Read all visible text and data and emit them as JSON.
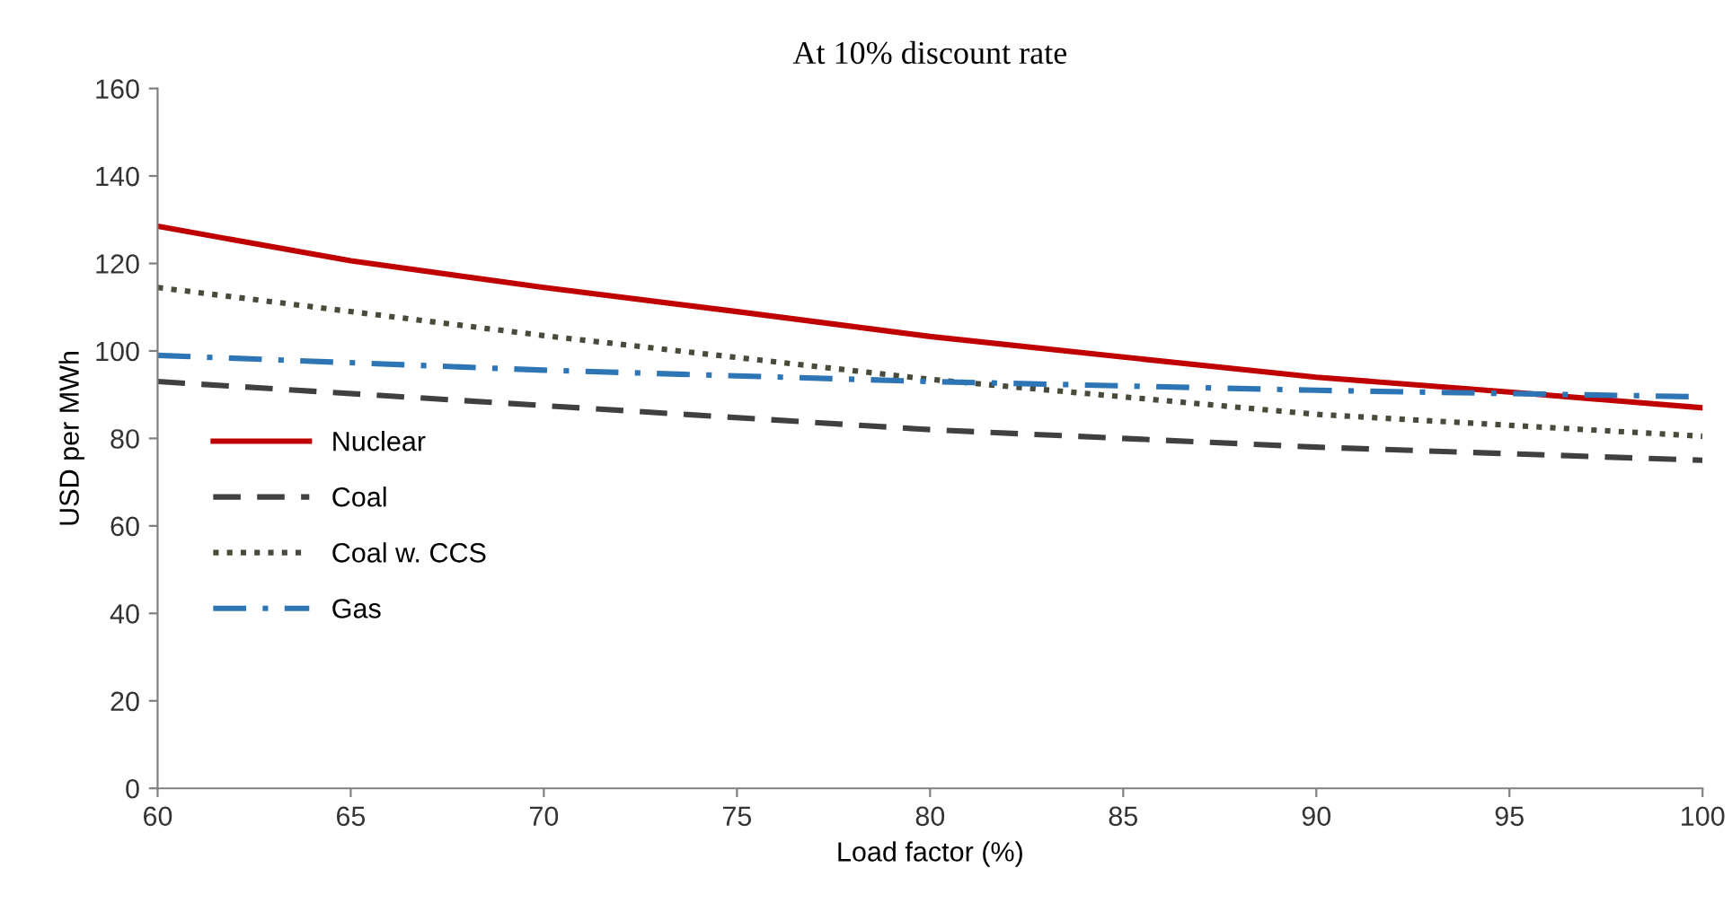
{
  "chart_data": {
    "type": "line",
    "title": "At 10% discount rate",
    "xlabel": "Load factor (%)",
    "ylabel": "USD per MWh",
    "xlim": [
      60,
      100
    ],
    "xticks": [
      60,
      65,
      70,
      75,
      80,
      85,
      90,
      95,
      100
    ],
    "ylim": [
      0,
      160
    ],
    "yticks": [
      0,
      20,
      40,
      60,
      80,
      100,
      120,
      140,
      160
    ],
    "grid": false,
    "legend": "left",
    "marker": "none",
    "series": [
      {
        "name": "Nuclear",
        "color": "#c00000",
        "line_style": "solid",
        "x": [
          60,
          65,
          70,
          75,
          80,
          85,
          90,
          95,
          100
        ],
        "values": [
          128.5,
          120.6,
          114.5,
          109,
          103.3,
          98.6,
          94,
          90.6,
          87
        ]
      },
      {
        "name": "Coal",
        "color": "#404040",
        "line_style": "dashed",
        "x": [
          60,
          70,
          80,
          90,
          100
        ],
        "values": [
          93,
          87.5,
          82,
          78,
          75
        ]
      },
      {
        "name": "Coal w. CCS",
        "color": "#4a4a3a",
        "line_style": "dotted",
        "x": [
          60,
          70,
          80,
          90,
          100
        ],
        "values": [
          114.5,
          103.5,
          93.5,
          85.5,
          80.5
        ]
      },
      {
        "name": "Gas",
        "color": "#2e75b6",
        "line_style": "dashdot",
        "x": [
          60,
          70,
          80,
          90,
          100
        ],
        "values": [
          99,
          95.6,
          93,
          91,
          89.5
        ]
      }
    ]
  }
}
